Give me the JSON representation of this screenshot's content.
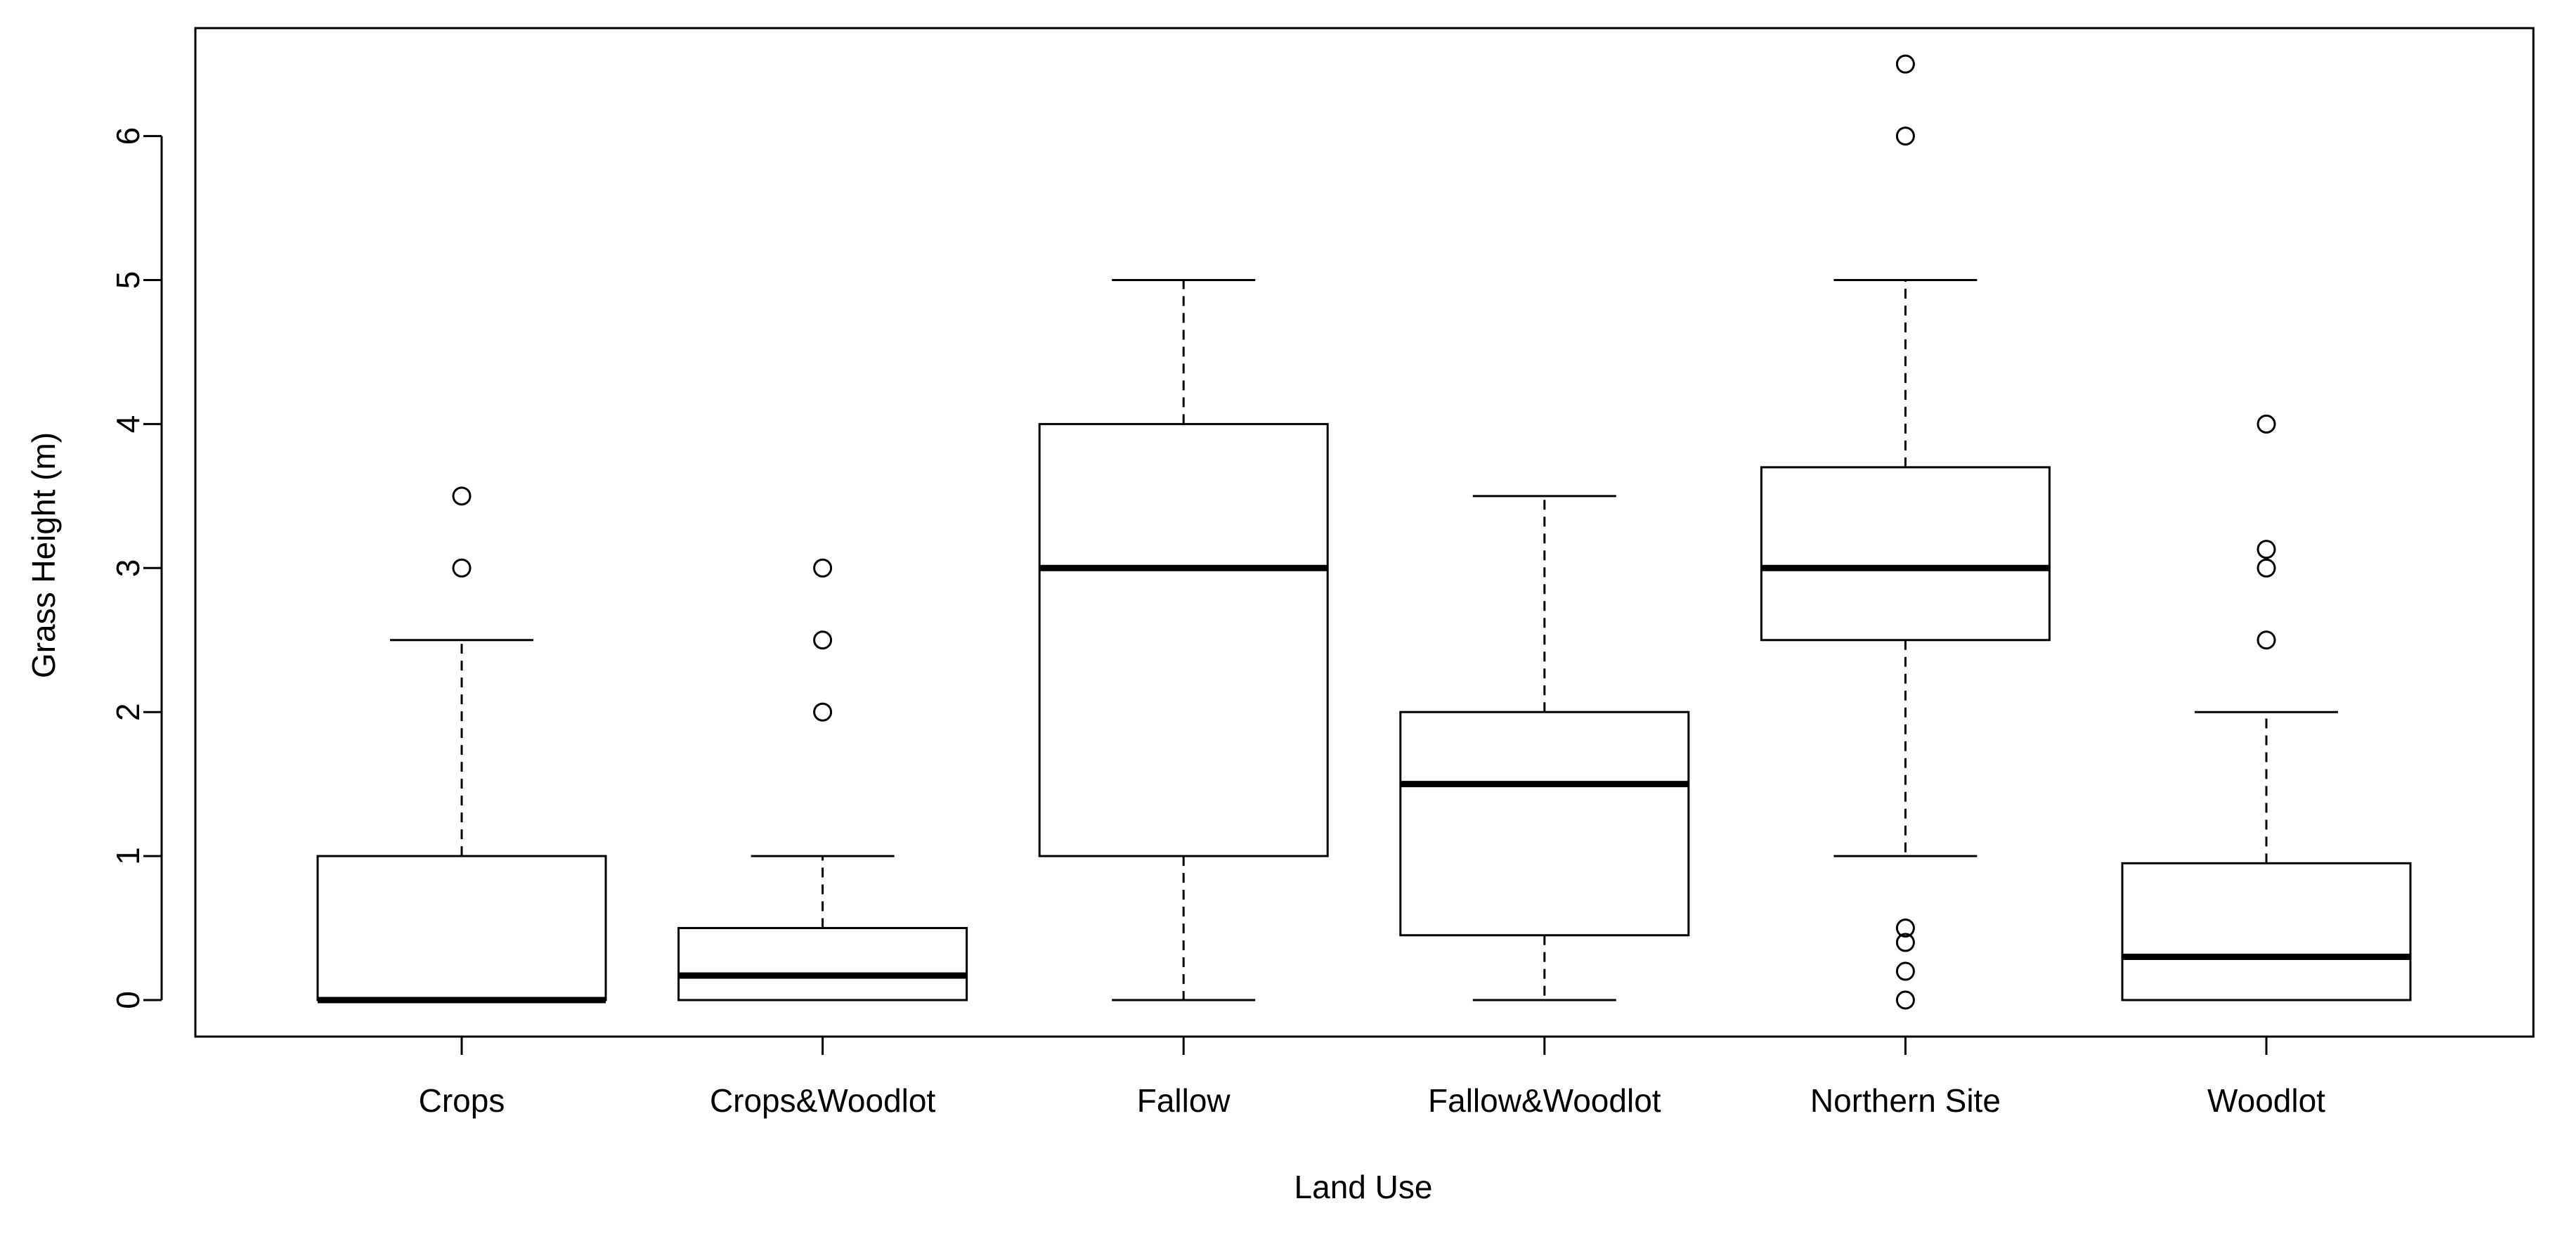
{
  "chart_data": {
    "type": "boxplot",
    "xlabel": "Land Use",
    "ylabel": "Grass Height (m)",
    "ylim": [
      -0.25,
      6.75
    ],
    "yticks": [
      0,
      1,
      2,
      3,
      4,
      5,
      6
    ],
    "grid": false,
    "legend": "none",
    "categories": [
      "Crops",
      "Crops&Woodlot",
      "Fallow",
      "Fallow&Woodlot",
      "Northern Site",
      "Woodlot"
    ],
    "boxes": [
      {
        "category": "Crops",
        "min": 0,
        "q1": 0,
        "median": 0,
        "q3": 1,
        "max": 2.5,
        "outliers": [
          3,
          3.5
        ]
      },
      {
        "category": "Crops&Woodlot",
        "min": 0,
        "q1": 0,
        "median": 0.17,
        "q3": 0.5,
        "max": 1,
        "outliers": [
          2,
          2.5,
          3
        ]
      },
      {
        "category": "Fallow",
        "min": 0,
        "q1": 1,
        "median": 3,
        "q3": 4,
        "max": 5,
        "outliers": []
      },
      {
        "category": "Fallow&Woodlot",
        "min": 0,
        "q1": 0.45,
        "median": 1.5,
        "q3": 2,
        "max": 3.5,
        "outliers": []
      },
      {
        "category": "Northern Site",
        "min": 1,
        "q1": 2.5,
        "median": 3,
        "q3": 3.7,
        "max": 5,
        "outliers": [
          0,
          0.2,
          0.4,
          0.5,
          6,
          6.5
        ]
      },
      {
        "category": "Woodlot",
        "min": 0,
        "q1": 0,
        "median": 0.3,
        "q3": 0.95,
        "max": 2,
        "outliers": [
          2.5,
          3,
          3.13,
          4
        ]
      }
    ]
  }
}
